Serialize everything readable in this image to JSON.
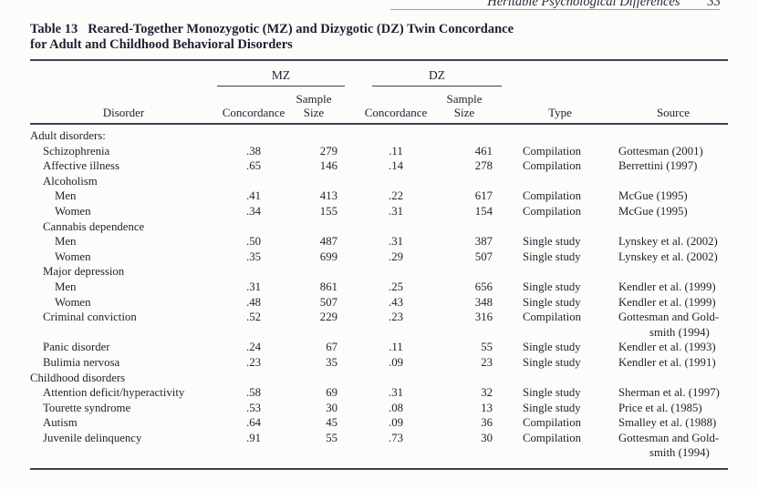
{
  "page": {
    "running_head": "Heritable Psychological Differences",
    "page_number": "33"
  },
  "table": {
    "caption_label": "Table 13",
    "caption_text": "Reared-Together Monozygotic (MZ) and Dizygotic (DZ) Twin Concordance",
    "caption_line2": "for Adult and Childhood Behavioral Disorders",
    "group_mz": "MZ",
    "group_dz": "DZ",
    "headers": {
      "disorder": "Disorder",
      "concordance": "Concordance",
      "sample": "Sample",
      "size": "Size",
      "type": "Type",
      "source": "Source"
    },
    "rows": [
      {
        "label": "Adult disorders:",
        "indent": 0,
        "mz_concordance": "",
        "mz_sample": "",
        "dz_concordance": "",
        "dz_sample": "",
        "type": "",
        "source": "",
        "source2": ""
      },
      {
        "label": "Schizophrenia",
        "indent": 1,
        "mz_concordance": ".38",
        "mz_sample": "279",
        "dz_concordance": ".11",
        "dz_sample": "461",
        "type": "Compilation",
        "source": "Gottesman (2001)",
        "source2": ""
      },
      {
        "label": "Affective illness",
        "indent": 1,
        "mz_concordance": ".65",
        "mz_sample": "146",
        "dz_concordance": ".14",
        "dz_sample": "278",
        "type": "Compilation",
        "source": "Berrettini (1997)",
        "source2": ""
      },
      {
        "label": "Alcoholism",
        "indent": 1,
        "mz_concordance": "",
        "mz_sample": "",
        "dz_concordance": "",
        "dz_sample": "",
        "type": "",
        "source": "",
        "source2": ""
      },
      {
        "label": "Men",
        "indent": 2,
        "mz_concordance": ".41",
        "mz_sample": "413",
        "dz_concordance": ".22",
        "dz_sample": "617",
        "type": "Compilation",
        "source": "McGue (1995)",
        "source2": ""
      },
      {
        "label": "Women",
        "indent": 2,
        "mz_concordance": ".34",
        "mz_sample": "155",
        "dz_concordance": ".31",
        "dz_sample": "154",
        "type": "Compilation",
        "source": "McGue (1995)",
        "source2": ""
      },
      {
        "label": "Cannabis dependence",
        "indent": 1,
        "mz_concordance": "",
        "mz_sample": "",
        "dz_concordance": "",
        "dz_sample": "",
        "type": "",
        "source": "",
        "source2": ""
      },
      {
        "label": "Men",
        "indent": 2,
        "mz_concordance": ".50",
        "mz_sample": "487",
        "dz_concordance": ".31",
        "dz_sample": "387",
        "type": "Single study",
        "source": "Lynskey et al. (2002)",
        "source2": ""
      },
      {
        "label": "Women",
        "indent": 2,
        "mz_concordance": ".35",
        "mz_sample": "699",
        "dz_concordance": ".29",
        "dz_sample": "507",
        "type": "Single study",
        "source": "Lynskey et al. (2002)",
        "source2": ""
      },
      {
        "label": "Major depression",
        "indent": 1,
        "mz_concordance": "",
        "mz_sample": "",
        "dz_concordance": "",
        "dz_sample": "",
        "type": "",
        "source": "",
        "source2": ""
      },
      {
        "label": "Men",
        "indent": 2,
        "mz_concordance": ".31",
        "mz_sample": "861",
        "dz_concordance": ".25",
        "dz_sample": "656",
        "type": "Single study",
        "source": "Kendler et al. (1999)",
        "source2": ""
      },
      {
        "label": "Women",
        "indent": 2,
        "mz_concordance": ".48",
        "mz_sample": "507",
        "dz_concordance": ".43",
        "dz_sample": "348",
        "type": "Single study",
        "source": "Kendler et al. (1999)",
        "source2": ""
      },
      {
        "label": "Criminal conviction",
        "indent": 1,
        "mz_concordance": ".52",
        "mz_sample": "229",
        "dz_concordance": ".23",
        "dz_sample": "316",
        "type": "Compilation",
        "source": "Gottesman and Gold-",
        "source2": "smith (1994)"
      },
      {
        "label": "Panic disorder",
        "indent": 1,
        "mz_concordance": ".24",
        "mz_sample": "67",
        "dz_concordance": ".11",
        "dz_sample": "55",
        "type": "Single study",
        "source": "Kendler et al. (1993)",
        "source2": ""
      },
      {
        "label": "Bulimia nervosa",
        "indent": 1,
        "mz_concordance": ".23",
        "mz_sample": "35",
        "dz_concordance": ".09",
        "dz_sample": "23",
        "type": "Single study",
        "source": "Kendler et al. (1991)",
        "source2": ""
      },
      {
        "label": "Childhood disorders",
        "indent": 0,
        "mz_concordance": "",
        "mz_sample": "",
        "dz_concordance": "",
        "dz_sample": "",
        "type": "",
        "source": "",
        "source2": ""
      },
      {
        "label": "Attention deficit/hyperactivity",
        "indent": 1,
        "mz_concordance": ".58",
        "mz_sample": "69",
        "dz_concordance": ".31",
        "dz_sample": "32",
        "type": "Single study",
        "source": "Sherman et al. (1997)",
        "source2": ""
      },
      {
        "label": "Tourette syndrome",
        "indent": 1,
        "mz_concordance": ".53",
        "mz_sample": "30",
        "dz_concordance": ".08",
        "dz_sample": "13",
        "type": "Single study",
        "source": "Price et al. (1985)",
        "source2": ""
      },
      {
        "label": "Autism",
        "indent": 1,
        "mz_concordance": ".64",
        "mz_sample": "45",
        "dz_concordance": ".09",
        "dz_sample": "36",
        "type": "Compilation",
        "source": "Smalley et al. (1988)",
        "source2": ""
      },
      {
        "label": "Juvenile delinquency",
        "indent": 1,
        "mz_concordance": ".91",
        "mz_sample": "55",
        "dz_concordance": ".73",
        "dz_sample": "30",
        "type": "Compilation",
        "source": "Gottesman and Gold-",
        "source2": "smith (1994)"
      }
    ]
  }
}
